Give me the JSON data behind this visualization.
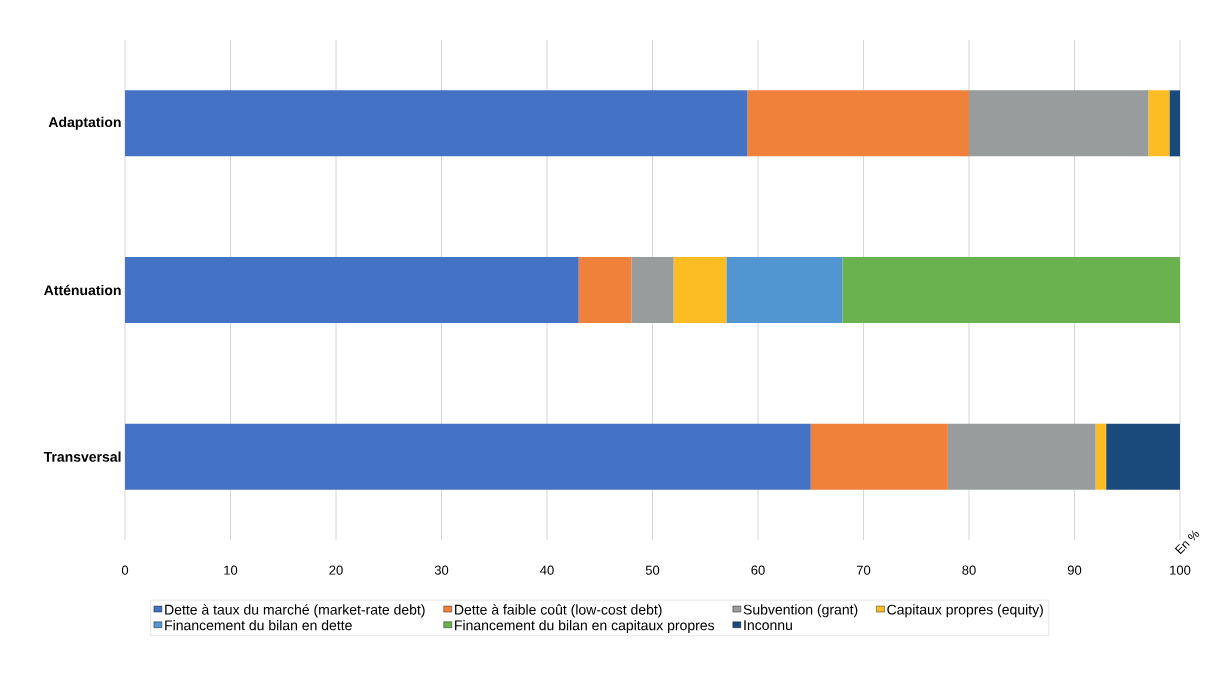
{
  "chart_data": {
    "type": "bar",
    "orientation": "horizontal",
    "stacked": true,
    "categories": [
      "Adaptation",
      "Atténuation",
      "Transversal"
    ],
    "series": [
      {
        "name": "Dette à taux du marché (market-rate debt)",
        "color": "#4472c4",
        "values": [
          59,
          43,
          65
        ]
      },
      {
        "name": "Dette à faible coût (low-cost debt)",
        "color": "#f0813a",
        "values": [
          21,
          5,
          13
        ]
      },
      {
        "name": "Subvention (grant)",
        "color": "#999c9c",
        "values": [
          17,
          4,
          14
        ]
      },
      {
        "name": "Capitaux propres (equity)",
        "color": "#fbbc24",
        "values": [
          2,
          5,
          1
        ]
      },
      {
        "name": "Financement du bilan en dette",
        "color": "#5196d0",
        "values": [
          0,
          11,
          0
        ]
      },
      {
        "name": "Financement du bilan en capitaux propres",
        "color": "#6ab150",
        "values": [
          0,
          32,
          0
        ]
      },
      {
        "name": "Inconnu",
        "color": "#1a4a7c",
        "values": [
          1,
          0,
          7
        ]
      }
    ],
    "xlim": [
      0,
      100
    ],
    "xticks": [
      0,
      10,
      20,
      30,
      40,
      50,
      60,
      70,
      80,
      90,
      100
    ],
    "grid": "x",
    "legend": "bottom",
    "annotations": [
      "En %"
    ]
  }
}
